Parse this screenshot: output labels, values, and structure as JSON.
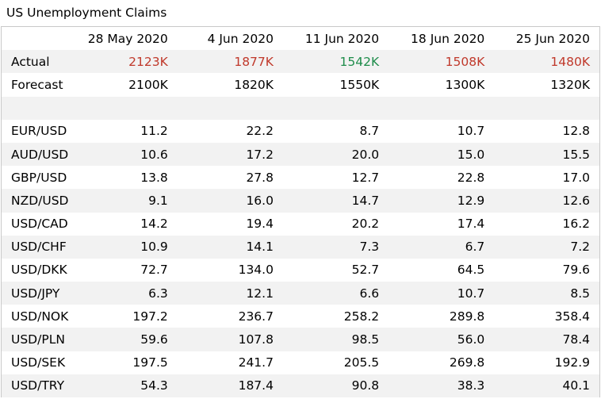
{
  "title": "US Unemployment Claims",
  "columns": [
    "28 May 2020",
    "4 Jun 2020",
    "11 Jun 2020",
    "18 Jun 2020",
    "25 Jun 2020"
  ],
  "actual": {
    "label": "Actual",
    "values": [
      "2123K",
      "1877K",
      "1542K",
      "1508K",
      "1480K"
    ],
    "value_colors": [
      "#c0392b",
      "#c0392b",
      "#1e8c4a",
      "#c0392b",
      "#c0392b"
    ]
  },
  "forecast": {
    "label": "Forecast",
    "values": [
      "2100K",
      "1820K",
      "1550K",
      "1300K",
      "1320K"
    ]
  },
  "pairs": [
    {
      "label": "EUR/USD",
      "values": [
        "11.2",
        "22.2",
        "8.7",
        "10.7",
        "12.8"
      ]
    },
    {
      "label": "AUD/USD",
      "values": [
        "10.6",
        "17.2",
        "20.0",
        "15.0",
        "15.5"
      ]
    },
    {
      "label": "GBP/USD",
      "values": [
        "13.8",
        "27.8",
        "12.7",
        "22.8",
        "17.0"
      ]
    },
    {
      "label": "NZD/USD",
      "values": [
        "9.1",
        "16.0",
        "14.7",
        "12.9",
        "12.6"
      ]
    },
    {
      "label": "USD/CAD",
      "values": [
        "14.2",
        "19.4",
        "20.2",
        "17.4",
        "16.2"
      ]
    },
    {
      "label": "USD/CHF",
      "values": [
        "10.9",
        "14.1",
        "7.3",
        "6.7",
        "7.2"
      ]
    },
    {
      "label": "USD/DKK",
      "values": [
        "72.7",
        "134.0",
        "52.7",
        "64.5",
        "79.6"
      ]
    },
    {
      "label": "USD/JPY",
      "values": [
        "6.3",
        "12.1",
        "6.6",
        "10.7",
        "8.5"
      ]
    },
    {
      "label": "USD/NOK",
      "values": [
        "197.2",
        "236.7",
        "258.2",
        "289.8",
        "358.4"
      ]
    },
    {
      "label": "USD/PLN",
      "values": [
        "59.6",
        "107.8",
        "98.5",
        "56.0",
        "78.4"
      ]
    },
    {
      "label": "USD/SEK",
      "values": [
        "197.5",
        "241.7",
        "205.5",
        "269.8",
        "192.9"
      ]
    },
    {
      "label": "USD/TRY",
      "values": [
        "54.3",
        "187.4",
        "90.8",
        "38.3",
        "40.1"
      ]
    }
  ]
}
